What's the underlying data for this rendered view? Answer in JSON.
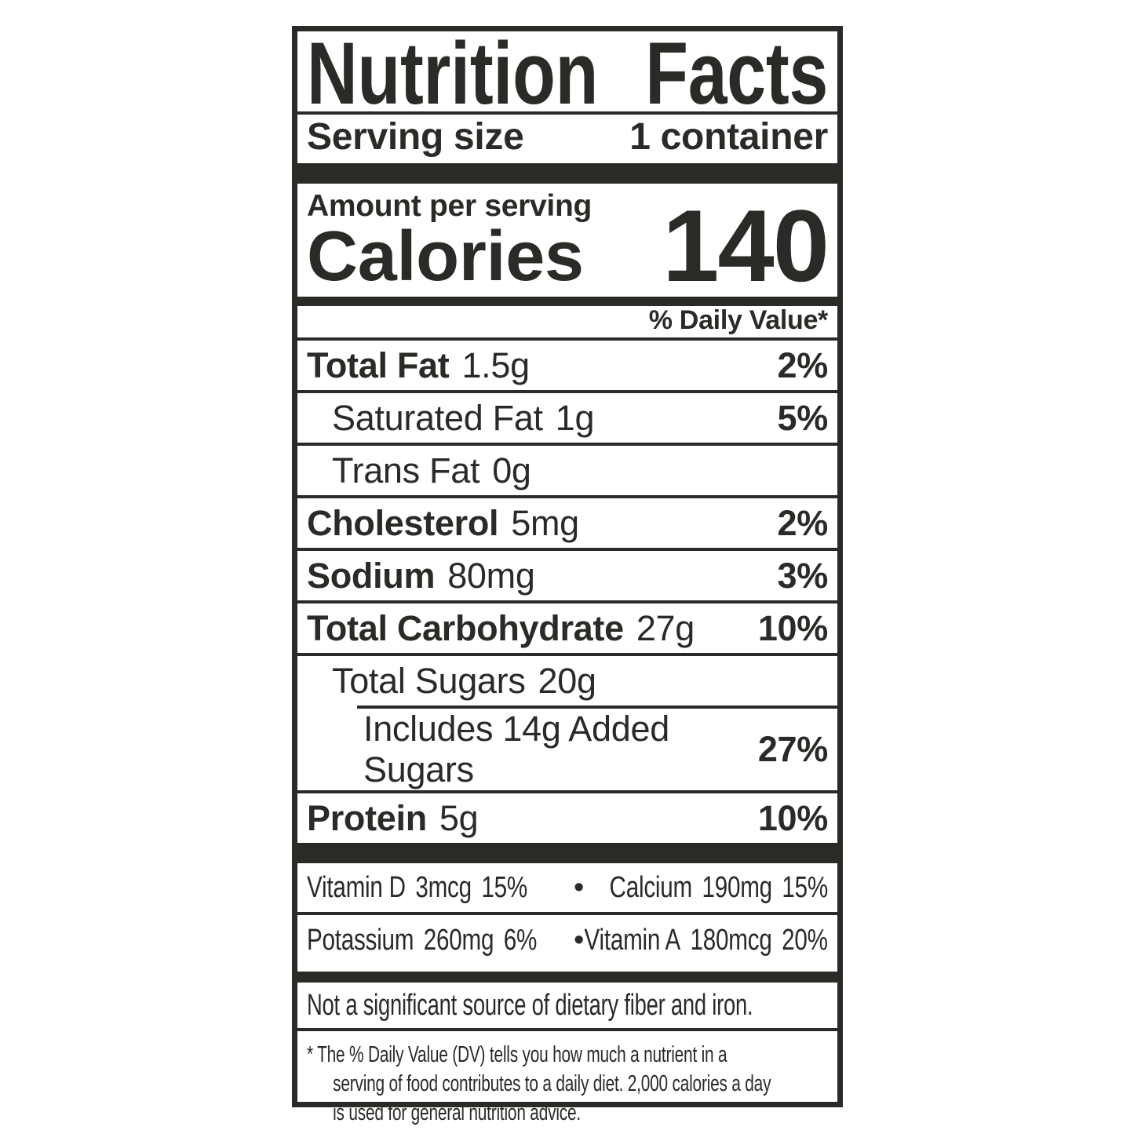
{
  "colors": {
    "ink": "#2b2a27",
    "background": "#ffffff"
  },
  "label": {
    "title_word1": "Nutrition",
    "title_word2": "Facts",
    "serving": {
      "label": "Serving size",
      "value": "1 container"
    },
    "amount_per_serving": "Amount per serving",
    "calories": {
      "label": "Calories",
      "value": "140"
    },
    "daily_value_header": "% Daily Value*",
    "nutrients": [
      {
        "name": "Total Fat",
        "amount": "1.5g",
        "dv": "2%"
      },
      {
        "name": "Saturated Fat",
        "amount": "1g",
        "dv": "5%"
      },
      {
        "name": "Trans Fat",
        "amount": "0g",
        "dv": ""
      },
      {
        "name": "Cholesterol",
        "amount": "5mg",
        "dv": "2%"
      },
      {
        "name": "Sodium",
        "amount": "80mg",
        "dv": "3%"
      },
      {
        "name": "Total Carbohydrate",
        "amount": "27g",
        "dv": "10%"
      },
      {
        "name": "Total Sugars",
        "amount": "20g",
        "dv": ""
      },
      {
        "name": "Includes 14g Added Sugars",
        "amount": "",
        "dv": "27%"
      },
      {
        "name": "Protein",
        "amount": "5g",
        "dv": "10%"
      }
    ],
    "bullet": "•",
    "vitamins": [
      {
        "left_name": "Vitamin D",
        "left_amount": "3mcg",
        "left_dv": "15%",
        "right_name": "Calcium",
        "right_amount": "190mg",
        "right_dv": "15%"
      },
      {
        "left_name": "Potassium",
        "left_amount": "260mg",
        "left_dv": "6%",
        "right_name": "Vitamin A",
        "right_amount": "180mcg",
        "right_dv": "20%"
      }
    ],
    "not_significant": "Not a significant source of dietary fiber and iron.",
    "footnote_lines": [
      "* The % Daily Value (DV) tells you how much a nutrient in a",
      "serving of food contributes to a daily diet. 2,000 calories a day",
      "is used for general nutrition advice."
    ]
  }
}
